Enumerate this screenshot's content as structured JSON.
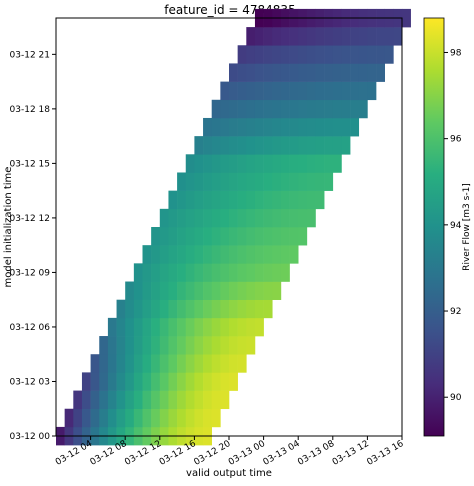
{
  "chart_data": {
    "type": "heatmap",
    "title": "feature_id = 4784835",
    "xlabel": "valid output time",
    "ylabel": "model initialization time",
    "x_ticks": [
      "03-12 04",
      "03-12 08",
      "03-12 12",
      "03-12 16",
      "03-12 20",
      "03-13 00",
      "03-13 04",
      "03-13 08",
      "03-13 12",
      "03-13 16"
    ],
    "y_ticks": [
      "03-12 00",
      "03-12 03",
      "03-12 06",
      "03-12 09",
      "03-12 12",
      "03-12 15",
      "03-12 18",
      "03-12 21"
    ],
    "colorbar": {
      "label": "River Flow [m3 s-1]",
      "ticks": [
        "90",
        "92",
        "94",
        "96",
        "98"
      ],
      "range": [
        89.1,
        98.8
      ],
      "colormap": "viridis"
    },
    "grid": false,
    "x_range": [
      "03-12 00",
      "03-13 16"
    ],
    "y_range": [
      "03-12 00",
      "03-12 23"
    ],
    "forecast_hours": 18,
    "value_summary": [
      {
        "init": "03-12 00",
        "start": 89.8,
        "peak": 98.3
      },
      {
        "init": "03-12 03",
        "start": 91.0,
        "peak": 98.3
      },
      {
        "init": "03-12 06",
        "start": 93.0,
        "peak": 97.9
      },
      {
        "init": "03-12 09",
        "start": 94.0,
        "peak": 96.6
      },
      {
        "init": "03-12 12",
        "start": 94.1,
        "peak": 95.9
      },
      {
        "init": "03-12 15",
        "start": 93.8,
        "peak": 95.3
      },
      {
        "init": "03-12 18",
        "start": 92.3,
        "peak": 93.2
      },
      {
        "init": "03-12 21",
        "start": 90.8,
        "peak": 91.7
      },
      {
        "init": "03-12 23",
        "start": 89.0,
        "peak": 90.6
      }
    ]
  }
}
